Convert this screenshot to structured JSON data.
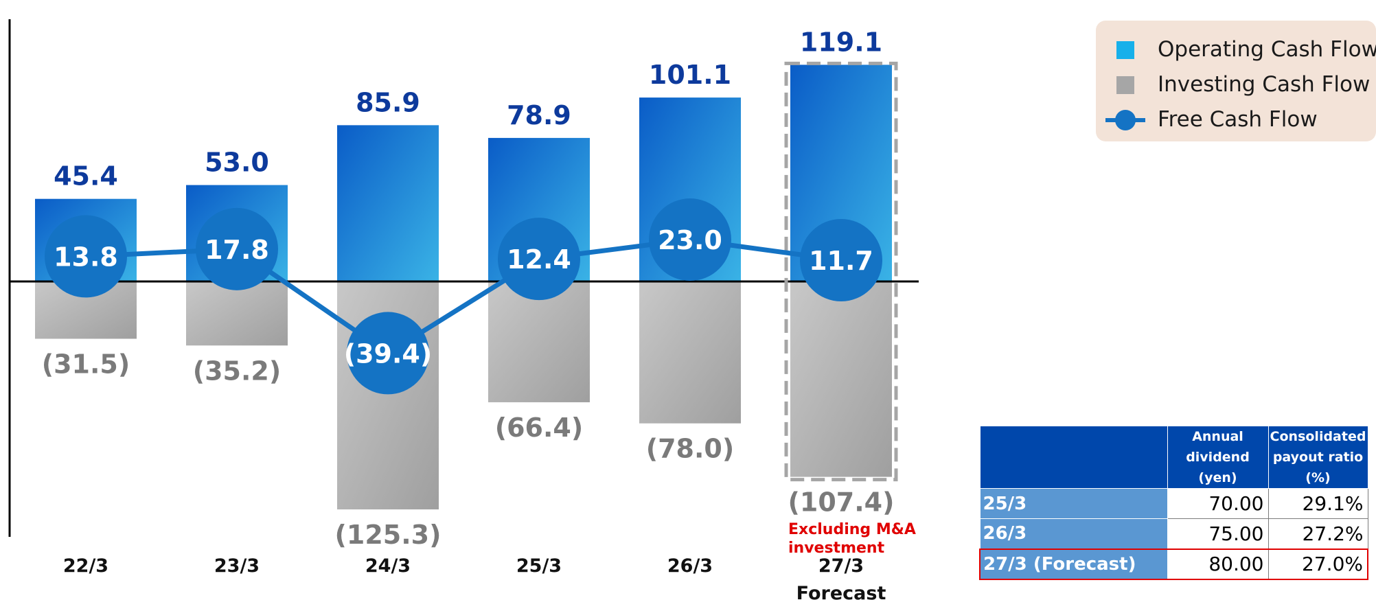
{
  "chart_data": {
    "type": "bar",
    "categories": [
      "22/3",
      "23/3",
      "24/3",
      "25/3",
      "26/3",
      "27/3"
    ],
    "forecast_sublabel": "Forecast",
    "series": [
      {
        "name": "Operating Cash Flow",
        "values": [
          45.4,
          53.0,
          85.9,
          78.9,
          101.1,
          119.1
        ],
        "labels": [
          "45.4",
          "53.0",
          "85.9",
          "78.9",
          "101.1",
          "119.1"
        ]
      },
      {
        "name": "Investing Cash Flow",
        "values": [
          -31.5,
          -35.2,
          -125.3,
          -66.4,
          -78.0,
          -107.4
        ],
        "labels": [
          "(31.5)",
          "(35.2)",
          "(125.3)",
          "(66.4)",
          "(78.0)",
          "(107.4)"
        ]
      },
      {
        "name": "Free Cash Flow",
        "type": "line",
        "values": [
          13.8,
          17.8,
          -39.4,
          12.4,
          23.0,
          11.7
        ],
        "labels": [
          "13.8",
          "17.8",
          "(39.4)",
          "12.4",
          "23.0",
          "11.7"
        ]
      }
    ],
    "annotation": [
      "Excluding M&A",
      "investment"
    ],
    "ylim": [
      -135,
      140
    ],
    "legend_position": "top-right"
  },
  "colors": {
    "operating_top": "#0a5cc7",
    "operating_bottom": "#3ab3e6",
    "investing_top": "#c8c8c8",
    "investing_bottom": "#9f9f9f",
    "fcf": "#1473c4",
    "operating_label": "#0d3a9c",
    "investing_label": "#7a7a7a",
    "annotation": "#e00000",
    "legend_operating": "#17b0ea",
    "legend_investing": "#a6a6a6"
  },
  "legend": {
    "items": [
      "Operating Cash Flow",
      "Investing Cash Flow",
      "Free Cash Flow"
    ]
  },
  "dividend_table": {
    "headers": [
      [
        "Annual",
        "dividend",
        "(yen)"
      ],
      [
        "Consolidated",
        "payout ratio",
        "(%)"
      ]
    ],
    "rows": [
      {
        "label": "25/3",
        "dividend": "70.00",
        "payout": "29.1%"
      },
      {
        "label": "26/3",
        "dividend": "75.00",
        "payout": "27.2%"
      },
      {
        "label": "27/3 (Forecast)",
        "dividend": "80.00",
        "payout": "27.0%"
      }
    ]
  }
}
